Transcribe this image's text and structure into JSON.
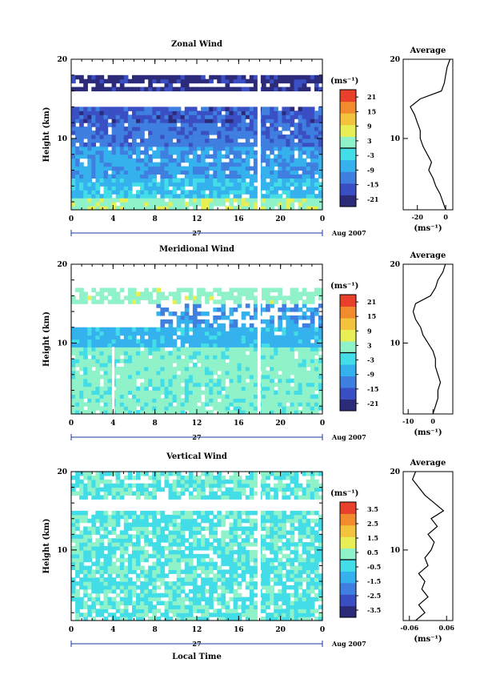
{
  "chart_data": [
    {
      "type": "heatmap",
      "title": "Zonal Wind",
      "xlabel": "",
      "ylabel": "Height (km)",
      "x_ticks": [
        "0",
        "4",
        "8",
        "12",
        "16",
        "20",
        "0"
      ],
      "xlim": [
        0,
        24
      ],
      "y_ticks": [
        "10",
        "20"
      ],
      "ylim": [
        1,
        20
      ],
      "date_label": "27",
      "date_suffix": "Aug 2007",
      "colorbar": {
        "unit": "(ms⁻¹)",
        "ticks": [
          "21",
          "15",
          "9",
          "3",
          "-3",
          "-9",
          "-15",
          "-21"
        ],
        "range": [
          -24,
          24
        ]
      },
      "profile": {
        "title": "Average",
        "x_ticks": [
          "-20",
          "0"
        ],
        "xlim": [
          -30,
          5
        ],
        "unit": "(ms⁻¹)",
        "y_ticks": [
          "10",
          "20"
        ],
        "height": [
          1,
          2,
          3,
          4,
          5,
          6,
          7,
          8,
          9,
          10,
          11,
          12,
          13,
          14,
          15,
          16,
          17,
          18,
          19,
          20
        ],
        "values": [
          0,
          -2,
          -4,
          -7,
          -9,
          -12,
          -10,
          -13,
          -16,
          -18,
          -18,
          -20,
          -22,
          -25,
          -18,
          -3,
          -1,
          0,
          1,
          3
        ]
      }
    },
    {
      "type": "heatmap",
      "title": "Meridional Wind",
      "xlabel": "",
      "ylabel": "Height (km)",
      "x_ticks": [
        "0",
        "4",
        "8",
        "12",
        "16",
        "20",
        "0"
      ],
      "xlim": [
        0,
        24
      ],
      "y_ticks": [
        "10",
        "20"
      ],
      "ylim": [
        1,
        20
      ],
      "date_label": "27",
      "date_suffix": "Aug 2007",
      "colorbar": {
        "unit": "(ms⁻¹)",
        "ticks": [
          "21",
          "15",
          "9",
          "3",
          "-3",
          "-9",
          "-15",
          "-21"
        ],
        "range": [
          -24,
          24
        ]
      },
      "profile": {
        "title": "Average",
        "x_ticks": [
          "-10",
          "0"
        ],
        "xlim": [
          -12,
          8
        ],
        "unit": "(ms⁻¹)",
        "y_ticks": [
          "10",
          "20"
        ],
        "height": [
          1,
          2,
          3,
          4,
          5,
          6,
          7,
          8,
          9,
          10,
          11,
          12,
          13,
          14,
          15,
          16,
          17,
          18,
          19,
          20
        ],
        "values": [
          0,
          1,
          2,
          2,
          3,
          2,
          1,
          1,
          0,
          -2,
          -4,
          -5,
          -7,
          -8,
          -7,
          -1,
          1,
          2,
          4,
          5
        ]
      }
    },
    {
      "type": "heatmap",
      "title": "Vertical Wind",
      "xlabel": "Local Time",
      "ylabel": "Height (km)",
      "x_ticks": [
        "0",
        "4",
        "8",
        "12",
        "16",
        "20",
        "0"
      ],
      "xlim": [
        0,
        24
      ],
      "y_ticks": [
        "10",
        "20"
      ],
      "ylim": [
        1,
        20
      ],
      "date_label": "27",
      "date_suffix": "Aug 2007",
      "colorbar": {
        "unit": "(ms⁻¹)",
        "ticks": [
          "3.5",
          "2.5",
          "1.5",
          "0.5",
          "-0.5",
          "-1.5",
          "-2.5",
          "-3.5"
        ],
        "range": [
          -4,
          4
        ]
      },
      "profile": {
        "title": "Average",
        "x_ticks": [
          "-0.06",
          "0.06"
        ],
        "xlim": [
          -0.08,
          0.08
        ],
        "unit": "(ms⁻¹)",
        "y_ticks": [
          "10",
          "20"
        ],
        "height": [
          1,
          2,
          3,
          4,
          5,
          6,
          7,
          8,
          9,
          10,
          11,
          12,
          13,
          14,
          15,
          16,
          17,
          18,
          19,
          20
        ],
        "values": [
          -0.04,
          -0.01,
          -0.03,
          0.0,
          -0.02,
          -0.01,
          -0.03,
          0.0,
          -0.01,
          0.01,
          0.02,
          0.0,
          0.03,
          0.01,
          0.05,
          0.02,
          -0.01,
          -0.03,
          -0.05,
          -0.04
        ]
      }
    }
  ]
}
